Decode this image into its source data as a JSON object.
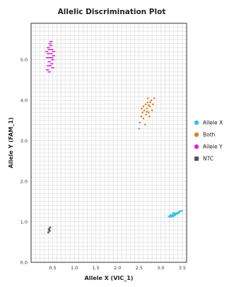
{
  "chart_data": {
    "type": "scatter",
    "title": "Allelic Discrimination Plot",
    "xlabel": "Allele X (VIC_1)",
    "ylabel": "Allele Y (FAM_1)",
    "xlim": [
      0,
      3.6
    ],
    "ylim": [
      0,
      5.9
    ],
    "x_ticks": [
      "0.5",
      "1.0",
      "1.5",
      "2.0",
      "2.5",
      "3.0",
      "3.5"
    ],
    "x_tick_values": [
      0.5,
      1.0,
      1.5,
      2.0,
      2.5,
      3.0,
      3.5
    ],
    "y_ticks": [
      "0.0",
      "1.0",
      "2.0",
      "3.0",
      "4.0",
      "5.0"
    ],
    "y_tick_values": [
      0,
      1,
      2,
      3,
      4,
      5
    ],
    "grid": true,
    "legend_position": "right",
    "series": [
      {
        "name": "Allele X",
        "color": "#2ec4e8",
        "marker": "dash",
        "points": [
          [
            3.22,
            1.12
          ],
          [
            3.26,
            1.15
          ],
          [
            3.3,
            1.18
          ],
          [
            3.34,
            1.2
          ],
          [
            3.38,
            1.22
          ],
          [
            3.42,
            1.24
          ],
          [
            3.24,
            1.17
          ],
          [
            3.28,
            1.13
          ],
          [
            3.32,
            1.16
          ],
          [
            3.36,
            1.19
          ],
          [
            3.4,
            1.21
          ],
          [
            3.45,
            1.26
          ],
          [
            3.48,
            1.27
          ],
          [
            3.2,
            1.14
          ],
          [
            3.3,
            1.22
          ]
        ]
      },
      {
        "name": "Both",
        "color": "#d9822b",
        "marker": "dot",
        "points": [
          [
            2.5,
            3.3
          ],
          [
            2.52,
            3.45
          ],
          [
            2.55,
            3.6
          ],
          [
            2.58,
            3.7
          ],
          [
            2.6,
            3.85
          ],
          [
            2.62,
            3.75
          ],
          [
            2.65,
            3.9
          ],
          [
            2.68,
            3.8
          ],
          [
            2.7,
            3.95
          ],
          [
            2.72,
            3.7
          ],
          [
            2.75,
            3.85
          ],
          [
            2.78,
            4.0
          ],
          [
            2.8,
            3.75
          ],
          [
            2.82,
            3.9
          ],
          [
            2.85,
            4.05
          ],
          [
            2.6,
            3.55
          ],
          [
            2.66,
            3.65
          ],
          [
            2.74,
            3.6
          ],
          [
            2.56,
            3.8
          ],
          [
            2.7,
            4.05
          ],
          [
            2.64,
            3.4
          ],
          [
            2.76,
            3.95
          ],
          [
            2.68,
            3.72
          ],
          [
            2.72,
            3.88
          ]
        ]
      },
      {
        "name": "Allele Y",
        "color": "#d22ad6",
        "marker": "dash",
        "points": [
          [
            0.38,
            4.75
          ],
          [
            0.4,
            4.85
          ],
          [
            0.42,
            4.95
          ],
          [
            0.44,
            5.05
          ],
          [
            0.46,
            5.15
          ],
          [
            0.48,
            5.25
          ],
          [
            0.5,
            5.0
          ],
          [
            0.52,
            5.1
          ],
          [
            0.4,
            5.3
          ],
          [
            0.44,
            5.4
          ],
          [
            0.36,
            5.2
          ],
          [
            0.42,
            4.7
          ],
          [
            0.48,
            4.9
          ],
          [
            0.38,
            5.05
          ],
          [
            0.46,
            5.35
          ],
          [
            0.5,
            4.8
          ],
          [
            0.52,
            5.2
          ],
          [
            0.4,
            5.15
          ],
          [
            0.44,
            4.85
          ],
          [
            0.46,
            5.45
          ],
          [
            0.42,
            5.25
          ],
          [
            0.48,
            5.05
          ]
        ]
      },
      {
        "name": "NTC",
        "color": "#555555",
        "marker": "square",
        "points": [
          [
            0.4,
            0.74
          ],
          [
            0.43,
            0.78
          ],
          [
            0.41,
            0.82
          ],
          [
            0.44,
            0.86
          ],
          [
            0.42,
            0.8
          ]
        ]
      }
    ]
  }
}
